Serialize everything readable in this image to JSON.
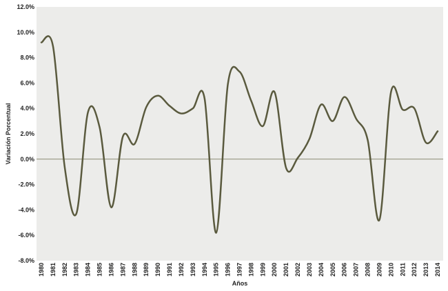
{
  "chart_data": {
    "type": "line",
    "title": "",
    "xlabel": "Años",
    "ylabel": "Variación Porcentual",
    "ylim": [
      -8.0,
      12.0
    ],
    "ytick_labels": [
      "12.0%",
      "10.0%",
      "8.0%",
      "6.0%",
      "4.0%",
      "2.0%",
      "0.0%",
      "-2.0%",
      "-4.0%",
      "-6.0%",
      "-8.0%"
    ],
    "categories": [
      "1980",
      "1981",
      "1982",
      "1983",
      "1984",
      "1985",
      "1986",
      "1987",
      "1988",
      "1989",
      "1990",
      "1991",
      "1992",
      "1993",
      "1994",
      "1995",
      "1996",
      "1997",
      "1998",
      "1999",
      "2000",
      "2001",
      "2002",
      "2003",
      "2004",
      "2005",
      "2006",
      "2007",
      "2008",
      "2009",
      "2010",
      "2011",
      "2012",
      "2013",
      "2014"
    ],
    "series": [
      {
        "values": [
          9.2,
          8.9,
          -0.6,
          -4.3,
          3.7,
          2.5,
          -3.8,
          1.8,
          1.2,
          4.1,
          5.0,
          4.2,
          3.6,
          4.0,
          4.8,
          -5.8,
          5.9,
          6.9,
          4.6,
          2.6,
          5.3,
          -0.7,
          0.1,
          1.6,
          4.3,
          3.0,
          4.9,
          3.2,
          1.5,
          -4.8,
          5.3,
          3.9,
          4.0,
          1.3,
          2.2
        ]
      }
    ],
    "zero_line": true,
    "grid": false,
    "colors": {
      "line": "#5a5a3e",
      "plot_background": "#ececea",
      "zero_line": "#8a8a72"
    }
  }
}
